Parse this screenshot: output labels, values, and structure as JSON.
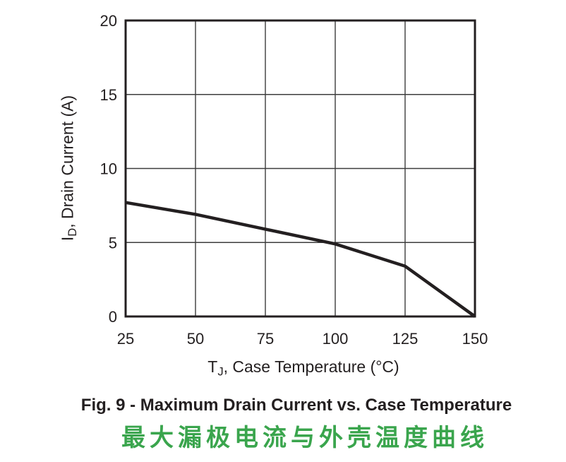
{
  "figure": {
    "caption_en": "Fig. 9 - Maximum Drain Current vs. Case Temperature",
    "caption_zh": "最大漏极电流与外壳温度曲线"
  },
  "axis_labels": {
    "y_prefix": "I",
    "y_sub": "D",
    "y_rest": ", Drain Current (A)",
    "x_prefix": "T",
    "x_sub": "J",
    "x_rest": ", Case Temperature (°C)"
  },
  "colors": {
    "ink": "#231f20",
    "grid": "#3c3c3c",
    "caption_green": "#3aa54d",
    "background": "#ffffff"
  },
  "chart_data": {
    "type": "line",
    "title": "Fig. 9 - Maximum Drain Current vs. Case Temperature",
    "title_zh": "最大漏极电流与外壳温度曲线",
    "xlabel": "TJ, Case Temperature (°C)",
    "ylabel": "ID, Drain Current (A)",
    "xlim": [
      25,
      150
    ],
    "ylim": [
      0,
      20
    ],
    "xticks": [
      25,
      50,
      75,
      100,
      125,
      150
    ],
    "yticks": [
      0,
      5,
      10,
      15,
      20
    ],
    "grid": true,
    "legend": false,
    "series": [
      {
        "name": "maximum-drain-current",
        "x": [
          25,
          50,
          75,
          100,
          125,
          150
        ],
        "y": [
          7.7,
          6.9,
          5.9,
          4.9,
          3.4,
          0
        ]
      }
    ]
  }
}
